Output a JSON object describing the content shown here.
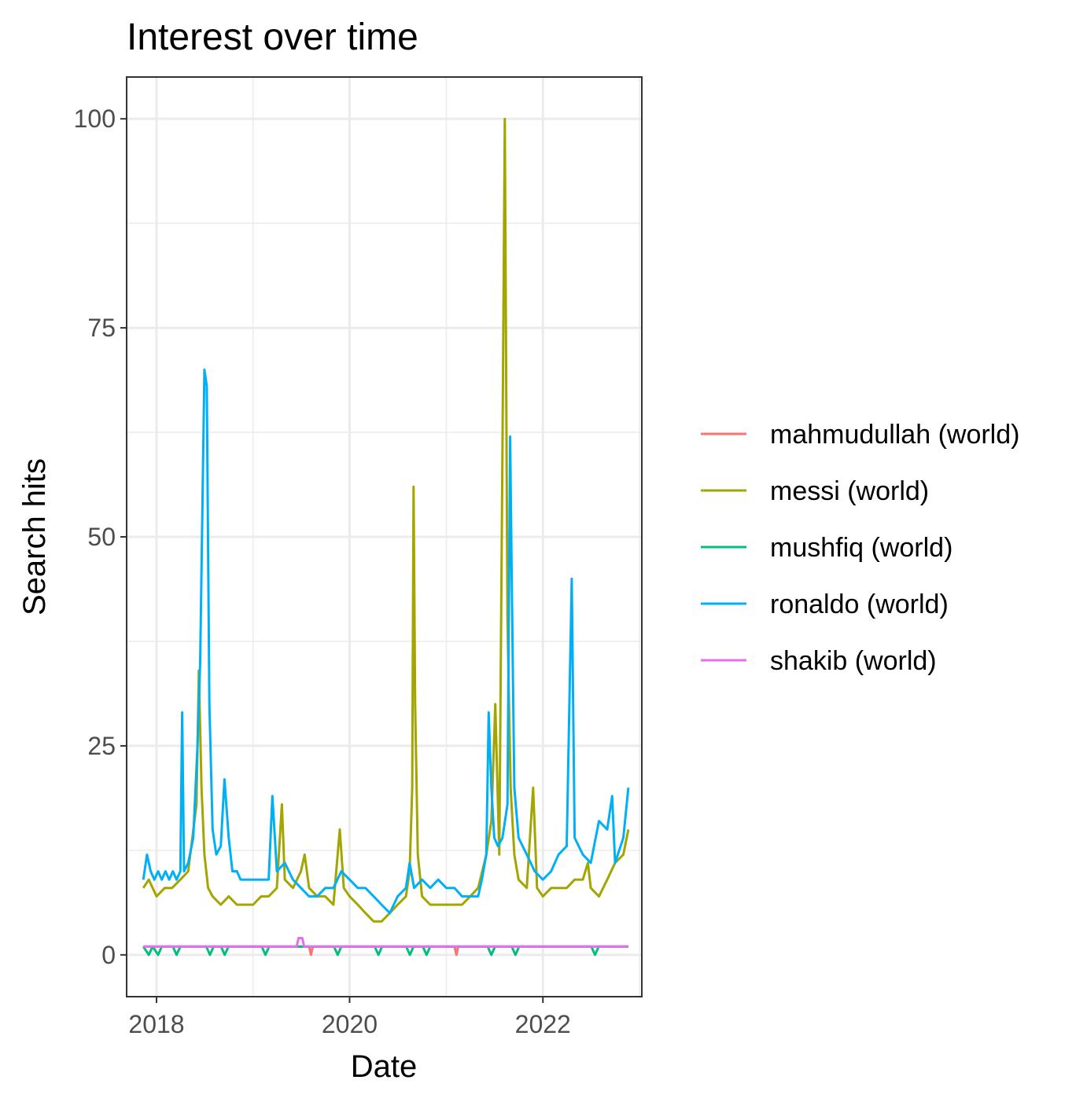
{
  "chart_data": {
    "type": "line",
    "title": "Interest over time",
    "xlabel": "Date",
    "ylabel": "Search hits",
    "xlim": [
      "2017-09-10",
      "2023-01-10"
    ],
    "ylim": [
      -5,
      105
    ],
    "x_ticks": [
      {
        "date": "2018-01-01",
        "label": "2018"
      },
      {
        "date": "2020-01-01",
        "label": "2020"
      },
      {
        "date": "2022-01-01",
        "label": "2022"
      }
    ],
    "y_ticks": [
      0,
      25,
      50,
      75,
      100
    ],
    "y_tick_labels": [
      "0",
      "25",
      "50",
      "75",
      "100"
    ],
    "grid": true,
    "legend_position": "right",
    "series": [
      {
        "name": "mahmudullah (world)",
        "color": "#F8766D",
        "points": [
          [
            "2017-11-12",
            1
          ],
          [
            "2019-08-01",
            1
          ],
          [
            "2019-08-08",
            0
          ],
          [
            "2019-08-15",
            1
          ],
          [
            "2021-02-01",
            1
          ],
          [
            "2021-02-08",
            0
          ],
          [
            "2021-02-15",
            1
          ],
          [
            "2022-11-20",
            1
          ]
        ]
      },
      {
        "name": "messi (world)",
        "color": "#A3A500",
        "points": [
          [
            "2017-11-12",
            8
          ],
          [
            "2017-12-03",
            9
          ],
          [
            "2018-01-01",
            7
          ],
          [
            "2018-02-01",
            8
          ],
          [
            "2018-03-01",
            8
          ],
          [
            "2018-04-01",
            9
          ],
          [
            "2018-05-01",
            10
          ],
          [
            "2018-06-01",
            18
          ],
          [
            "2018-06-10",
            34
          ],
          [
            "2018-06-20",
            20
          ],
          [
            "2018-07-01",
            12
          ],
          [
            "2018-07-15",
            8
          ],
          [
            "2018-08-01",
            7
          ],
          [
            "2018-09-01",
            6
          ],
          [
            "2018-10-01",
            7
          ],
          [
            "2018-11-01",
            6
          ],
          [
            "2018-12-01",
            6
          ],
          [
            "2019-01-01",
            6
          ],
          [
            "2019-02-01",
            7
          ],
          [
            "2019-03-01",
            7
          ],
          [
            "2019-04-01",
            8
          ],
          [
            "2019-04-20",
            18
          ],
          [
            "2019-05-01",
            9
          ],
          [
            "2019-06-01",
            8
          ],
          [
            "2019-07-01",
            10
          ],
          [
            "2019-07-15",
            12
          ],
          [
            "2019-08-01",
            8
          ],
          [
            "2019-09-01",
            7
          ],
          [
            "2019-10-01",
            7
          ],
          [
            "2019-11-01",
            6
          ],
          [
            "2019-11-25",
            15
          ],
          [
            "2019-12-10",
            8
          ],
          [
            "2020-01-01",
            7
          ],
          [
            "2020-02-01",
            6
          ],
          [
            "2020-03-01",
            5
          ],
          [
            "2020-04-01",
            4
          ],
          [
            "2020-05-01",
            4
          ],
          [
            "2020-06-01",
            5
          ],
          [
            "2020-07-01",
            6
          ],
          [
            "2020-08-01",
            7
          ],
          [
            "2020-08-15",
            10
          ],
          [
            "2020-08-25",
            20
          ],
          [
            "2020-08-30",
            56
          ],
          [
            "2020-09-05",
            30
          ],
          [
            "2020-09-15",
            12
          ],
          [
            "2020-10-01",
            7
          ],
          [
            "2020-11-01",
            6
          ],
          [
            "2020-12-01",
            6
          ],
          [
            "2021-01-01",
            6
          ],
          [
            "2021-02-01",
            6
          ],
          [
            "2021-03-01",
            6
          ],
          [
            "2021-04-01",
            7
          ],
          [
            "2021-05-01",
            8
          ],
          [
            "2021-06-01",
            12
          ],
          [
            "2021-06-20",
            16
          ],
          [
            "2021-07-05",
            30
          ],
          [
            "2021-07-20",
            12
          ],
          [
            "2021-08-01",
            60
          ],
          [
            "2021-08-10",
            100
          ],
          [
            "2021-08-20",
            40
          ],
          [
            "2021-09-01",
            20
          ],
          [
            "2021-09-15",
            12
          ],
          [
            "2021-10-01",
            9
          ],
          [
            "2021-11-01",
            8
          ],
          [
            "2021-11-25",
            20
          ],
          [
            "2021-12-10",
            8
          ],
          [
            "2022-01-01",
            7
          ],
          [
            "2022-02-01",
            8
          ],
          [
            "2022-03-01",
            8
          ],
          [
            "2022-04-01",
            8
          ],
          [
            "2022-05-01",
            9
          ],
          [
            "2022-06-01",
            9
          ],
          [
            "2022-06-20",
            11
          ],
          [
            "2022-07-01",
            8
          ],
          [
            "2022-08-01",
            7
          ],
          [
            "2022-09-01",
            9
          ],
          [
            "2022-10-01",
            11
          ],
          [
            "2022-11-01",
            12
          ],
          [
            "2022-11-20",
            15
          ]
        ]
      },
      {
        "name": "mushfiq (world)",
        "color": "#00BF7D",
        "points": [
          [
            "2017-11-12",
            1
          ],
          [
            "2017-12-03",
            0
          ],
          [
            "2017-12-17",
            1
          ],
          [
            "2018-01-07",
            0
          ],
          [
            "2018-01-21",
            1
          ],
          [
            "2018-03-04",
            1
          ],
          [
            "2018-03-18",
            0
          ],
          [
            "2018-04-01",
            1
          ],
          [
            "2018-07-08",
            1
          ],
          [
            "2018-07-22",
            0
          ],
          [
            "2018-08-05",
            1
          ],
          [
            "2018-09-02",
            1
          ],
          [
            "2018-09-16",
            0
          ],
          [
            "2018-09-30",
            1
          ],
          [
            "2019-02-03",
            1
          ],
          [
            "2019-02-17",
            0
          ],
          [
            "2019-03-03",
            1
          ],
          [
            "2019-11-03",
            1
          ],
          [
            "2019-11-17",
            0
          ],
          [
            "2019-12-01",
            1
          ],
          [
            "2020-04-05",
            1
          ],
          [
            "2020-04-19",
            0
          ],
          [
            "2020-05-03",
            1
          ],
          [
            "2020-08-02",
            1
          ],
          [
            "2020-08-16",
            0
          ],
          [
            "2020-08-30",
            1
          ],
          [
            "2020-10-04",
            1
          ],
          [
            "2020-10-18",
            0
          ],
          [
            "2020-11-01",
            1
          ],
          [
            "2021-06-06",
            1
          ],
          [
            "2021-06-20",
            0
          ],
          [
            "2021-07-04",
            1
          ],
          [
            "2021-09-05",
            1
          ],
          [
            "2021-09-19",
            0
          ],
          [
            "2021-10-03",
            1
          ],
          [
            "2022-07-03",
            1
          ],
          [
            "2022-07-17",
            0
          ],
          [
            "2022-07-31",
            1
          ],
          [
            "2022-11-20",
            1
          ]
        ]
      },
      {
        "name": "ronaldo (world)",
        "color": "#00B0F6",
        "points": [
          [
            "2017-11-12",
            9
          ],
          [
            "2017-11-26",
            12
          ],
          [
            "2017-12-10",
            10
          ],
          [
            "2017-12-24",
            9
          ],
          [
            "2018-01-07",
            10
          ],
          [
            "2018-01-21",
            9
          ],
          [
            "2018-02-04",
            10
          ],
          [
            "2018-02-18",
            9
          ],
          [
            "2018-03-04",
            10
          ],
          [
            "2018-03-18",
            9
          ],
          [
            "2018-04-01",
            10
          ],
          [
            "2018-04-08",
            29
          ],
          [
            "2018-04-15",
            10
          ],
          [
            "2018-05-01",
            11
          ],
          [
            "2018-05-20",
            14
          ],
          [
            "2018-06-05",
            25
          ],
          [
            "2018-06-15",
            35
          ],
          [
            "2018-07-01",
            70
          ],
          [
            "2018-07-10",
            68
          ],
          [
            "2018-07-20",
            30
          ],
          [
            "2018-08-01",
            15
          ],
          [
            "2018-08-15",
            12
          ],
          [
            "2018-09-01",
            13
          ],
          [
            "2018-09-15",
            21
          ],
          [
            "2018-10-01",
            14
          ],
          [
            "2018-10-15",
            10
          ],
          [
            "2018-11-01",
            10
          ],
          [
            "2018-11-15",
            9
          ],
          [
            "2018-12-01",
            9
          ],
          [
            "2019-01-01",
            9
          ],
          [
            "2019-02-01",
            9
          ],
          [
            "2019-03-01",
            9
          ],
          [
            "2019-03-15",
            19
          ],
          [
            "2019-04-01",
            10
          ],
          [
            "2019-05-01",
            11
          ],
          [
            "2019-06-01",
            9
          ],
          [
            "2019-07-01",
            8
          ],
          [
            "2019-08-01",
            7
          ],
          [
            "2019-09-01",
            7
          ],
          [
            "2019-10-01",
            8
          ],
          [
            "2019-11-01",
            8
          ],
          [
            "2019-12-01",
            10
          ],
          [
            "2020-01-01",
            9
          ],
          [
            "2020-02-01",
            8
          ],
          [
            "2020-03-01",
            8
          ],
          [
            "2020-04-01",
            7
          ],
          [
            "2020-05-01",
            6
          ],
          [
            "2020-06-01",
            5
          ],
          [
            "2020-07-01",
            7
          ],
          [
            "2020-08-01",
            8
          ],
          [
            "2020-08-15",
            11
          ],
          [
            "2020-09-01",
            8
          ],
          [
            "2020-10-01",
            9
          ],
          [
            "2020-11-01",
            8
          ],
          [
            "2020-12-01",
            9
          ],
          [
            "2021-01-01",
            8
          ],
          [
            "2021-02-01",
            8
          ],
          [
            "2021-03-01",
            7
          ],
          [
            "2021-04-01",
            7
          ],
          [
            "2021-05-01",
            7
          ],
          [
            "2021-05-15",
            9
          ],
          [
            "2021-06-01",
            12
          ],
          [
            "2021-06-10",
            29
          ],
          [
            "2021-06-20",
            20
          ],
          [
            "2021-07-01",
            14
          ],
          [
            "2021-07-15",
            13
          ],
          [
            "2021-08-01",
            14
          ],
          [
            "2021-08-20",
            18
          ],
          [
            "2021-08-30",
            62
          ],
          [
            "2021-09-05",
            45
          ],
          [
            "2021-09-15",
            20
          ],
          [
            "2021-10-01",
            14
          ],
          [
            "2021-11-01",
            12
          ],
          [
            "2021-12-01",
            10
          ],
          [
            "2022-01-01",
            9
          ],
          [
            "2022-02-01",
            10
          ],
          [
            "2022-03-01",
            12
          ],
          [
            "2022-04-01",
            13
          ],
          [
            "2022-04-20",
            45
          ],
          [
            "2022-05-01",
            14
          ],
          [
            "2022-06-01",
            12
          ],
          [
            "2022-07-01",
            11
          ],
          [
            "2022-08-01",
            16
          ],
          [
            "2022-09-01",
            15
          ],
          [
            "2022-09-20",
            19
          ],
          [
            "2022-10-01",
            11
          ],
          [
            "2022-11-01",
            14
          ],
          [
            "2022-11-20",
            20
          ]
        ]
      },
      {
        "name": "shakib (world)",
        "color": "#E76BF3",
        "points": [
          [
            "2017-11-12",
            1
          ],
          [
            "2019-06-15",
            1
          ],
          [
            "2019-06-22",
            2
          ],
          [
            "2019-07-06",
            2
          ],
          [
            "2019-07-13",
            1
          ],
          [
            "2022-11-20",
            1
          ]
        ]
      }
    ]
  }
}
